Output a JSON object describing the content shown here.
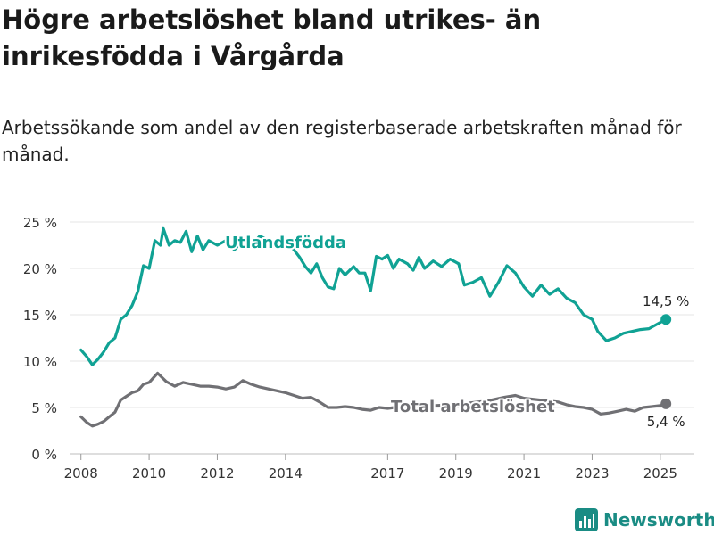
{
  "header": {
    "title": "Högre arbetslöshet bland utrikes- än inrikesfödda i Vårgårda",
    "subtitle": "Arbetssökande som andel av den registerbaserade arbetskraften månad för månad."
  },
  "brand": {
    "name": "Newsworthy",
    "color": "#1a8c84",
    "icon": "bar-chart-logo-icon"
  },
  "chart_data": {
    "type": "line",
    "ylim": [
      0,
      25
    ],
    "yticks": [
      0,
      5,
      10,
      15,
      20,
      25
    ],
    "ytick_labels": [
      "0 %",
      "5 %",
      "10 %",
      "15 %",
      "20 %",
      "25 %"
    ],
    "xlim": [
      "2007-09",
      "2026-01"
    ],
    "xticks": [
      "2008-01",
      "2010-01",
      "2012-01",
      "2014-01",
      "2017-01",
      "2019-01",
      "2021-01",
      "2023-01",
      "2025-01"
    ],
    "xtick_labels": [
      "2008",
      "2010",
      "2012",
      "2014",
      "2017",
      "2019",
      "2021",
      "2023",
      "2025"
    ],
    "grid": true,
    "series": [
      {
        "name": "Utlandsfödda",
        "color": "#10a294",
        "end_label": "14,5 %",
        "points": [
          [
            "2008-01",
            11.2
          ],
          [
            "2008-03",
            10.5
          ],
          [
            "2008-05",
            9.6
          ],
          [
            "2008-07",
            10.2
          ],
          [
            "2008-09",
            11.0
          ],
          [
            "2008-11",
            12.0
          ],
          [
            "2009-01",
            12.5
          ],
          [
            "2009-03",
            14.5
          ],
          [
            "2009-05",
            15.0
          ],
          [
            "2009-07",
            16.0
          ],
          [
            "2009-09",
            17.5
          ],
          [
            "2009-11",
            20.3
          ],
          [
            "2010-01",
            20.0
          ],
          [
            "2010-03",
            23.0
          ],
          [
            "2010-05",
            22.5
          ],
          [
            "2010-06",
            24.3
          ],
          [
            "2010-08",
            22.5
          ],
          [
            "2010-10",
            23.0
          ],
          [
            "2010-12",
            22.8
          ],
          [
            "2011-02",
            24.0
          ],
          [
            "2011-04",
            21.8
          ],
          [
            "2011-06",
            23.5
          ],
          [
            "2011-08",
            22.0
          ],
          [
            "2011-10",
            23.0
          ],
          [
            "2012-01",
            22.5
          ],
          [
            "2012-04",
            23.0
          ],
          [
            "2012-07",
            22.0
          ],
          [
            "2012-10",
            23.0
          ],
          [
            "2013-01",
            22.5
          ],
          [
            "2013-04",
            23.5
          ],
          [
            "2013-07",
            23.0
          ],
          [
            "2013-10",
            22.5
          ],
          [
            "2014-01",
            23.0
          ],
          [
            "2014-04",
            22.0
          ],
          [
            "2014-06",
            21.2
          ],
          [
            "2014-08",
            20.2
          ],
          [
            "2014-10",
            19.5
          ],
          [
            "2014-12",
            20.5
          ],
          [
            "2015-02",
            19.0
          ],
          [
            "2015-04",
            18.0
          ],
          [
            "2015-06",
            17.8
          ],
          [
            "2015-08",
            20.0
          ],
          [
            "2015-10",
            19.3
          ],
          [
            "2016-01",
            20.2
          ],
          [
            "2016-03",
            19.5
          ],
          [
            "2016-05",
            19.5
          ],
          [
            "2016-07",
            17.6
          ],
          [
            "2016-09",
            21.3
          ],
          [
            "2016-11",
            21.0
          ],
          [
            "2017-01",
            21.4
          ],
          [
            "2017-03",
            20.0
          ],
          [
            "2017-05",
            21.0
          ],
          [
            "2017-08",
            20.5
          ],
          [
            "2017-10",
            19.8
          ],
          [
            "2017-12",
            21.2
          ],
          [
            "2018-02",
            20.0
          ],
          [
            "2018-05",
            20.8
          ],
          [
            "2018-08",
            20.2
          ],
          [
            "2018-11",
            21.0
          ],
          [
            "2019-02",
            20.5
          ],
          [
            "2019-04",
            18.2
          ],
          [
            "2019-07",
            18.5
          ],
          [
            "2019-10",
            19.0
          ],
          [
            "2020-01",
            17.0
          ],
          [
            "2020-04",
            18.5
          ],
          [
            "2020-07",
            20.3
          ],
          [
            "2020-10",
            19.5
          ],
          [
            "2021-01",
            18.0
          ],
          [
            "2021-04",
            17.0
          ],
          [
            "2021-07",
            18.2
          ],
          [
            "2021-10",
            17.2
          ],
          [
            "2022-01",
            17.8
          ],
          [
            "2022-04",
            16.8
          ],
          [
            "2022-07",
            16.3
          ],
          [
            "2022-10",
            15.0
          ],
          [
            "2023-01",
            14.5
          ],
          [
            "2023-03",
            13.2
          ],
          [
            "2023-06",
            12.2
          ],
          [
            "2023-09",
            12.5
          ],
          [
            "2023-12",
            13.0
          ],
          [
            "2024-03",
            13.2
          ],
          [
            "2024-06",
            13.4
          ],
          [
            "2024-09",
            13.5
          ],
          [
            "2024-12",
            14.0
          ],
          [
            "2025-03",
            14.5
          ]
        ]
      },
      {
        "name": "Total arbetslöshet",
        "color": "#707074",
        "end_label": "5,4 %",
        "points": [
          [
            "2008-01",
            4.0
          ],
          [
            "2008-03",
            3.4
          ],
          [
            "2008-05",
            3.0
          ],
          [
            "2008-07",
            3.2
          ],
          [
            "2008-09",
            3.5
          ],
          [
            "2008-11",
            4.0
          ],
          [
            "2009-01",
            4.5
          ],
          [
            "2009-03",
            5.8
          ],
          [
            "2009-05",
            6.2
          ],
          [
            "2009-07",
            6.6
          ],
          [
            "2009-09",
            6.8
          ],
          [
            "2009-11",
            7.5
          ],
          [
            "2010-01",
            7.7
          ],
          [
            "2010-04",
            8.7
          ],
          [
            "2010-07",
            7.8
          ],
          [
            "2010-10",
            7.3
          ],
          [
            "2011-01",
            7.7
          ],
          [
            "2011-04",
            7.5
          ],
          [
            "2011-07",
            7.3
          ],
          [
            "2011-10",
            7.3
          ],
          [
            "2012-01",
            7.2
          ],
          [
            "2012-04",
            7.0
          ],
          [
            "2012-07",
            7.2
          ],
          [
            "2012-10",
            7.9
          ],
          [
            "2013-01",
            7.5
          ],
          [
            "2013-04",
            7.2
          ],
          [
            "2013-07",
            7.0
          ],
          [
            "2013-10",
            6.8
          ],
          [
            "2014-01",
            6.6
          ],
          [
            "2014-04",
            6.3
          ],
          [
            "2014-07",
            6.0
          ],
          [
            "2014-10",
            6.1
          ],
          [
            "2015-01",
            5.6
          ],
          [
            "2015-04",
            5.0
          ],
          [
            "2015-07",
            5.0
          ],
          [
            "2015-10",
            5.1
          ],
          [
            "2016-01",
            5.0
          ],
          [
            "2016-04",
            4.8
          ],
          [
            "2016-07",
            4.7
          ],
          [
            "2016-10",
            5.0
          ],
          [
            "2017-01",
            4.9
          ],
          [
            "2017-06",
            5.1
          ],
          [
            "2017-12",
            5.2
          ],
          [
            "2018-06",
            5.2
          ],
          [
            "2018-12",
            5.3
          ],
          [
            "2019-06",
            5.5
          ],
          [
            "2019-12",
            5.7
          ],
          [
            "2020-06",
            6.1
          ],
          [
            "2020-10",
            6.3
          ],
          [
            "2021-01",
            6.0
          ],
          [
            "2021-07",
            5.8
          ],
          [
            "2022-01",
            5.6
          ],
          [
            "2022-04",
            5.3
          ],
          [
            "2022-07",
            5.1
          ],
          [
            "2022-10",
            5.0
          ],
          [
            "2023-01",
            4.8
          ],
          [
            "2023-04",
            4.3
          ],
          [
            "2023-07",
            4.4
          ],
          [
            "2023-10",
            4.6
          ],
          [
            "2024-01",
            4.8
          ],
          [
            "2024-04",
            4.6
          ],
          [
            "2024-07",
            5.0
          ],
          [
            "2024-10",
            5.1
          ],
          [
            "2025-01",
            5.2
          ],
          [
            "2025-03",
            5.4
          ]
        ]
      }
    ]
  }
}
